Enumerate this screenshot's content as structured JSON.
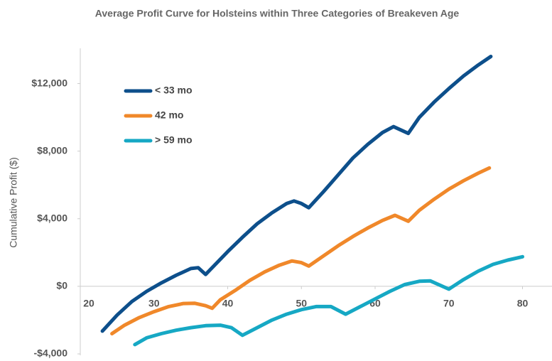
{
  "chart_data": {
    "type": "line",
    "title": "Average Profit Curve for Holsteins within Three Categories of Breakeven Age",
    "y_label": "Cumulative Profit ($)",
    "xlim": [
      20,
      84
    ],
    "xticks": [
      20,
      30,
      40,
      50,
      60,
      70,
      80
    ],
    "ylim": [
      -4000,
      14000
    ],
    "yticks": [
      {
        "value": -4000,
        "label": "-$4,000"
      },
      {
        "value": 0,
        "label": "$0"
      },
      {
        "value": 4000,
        "label": "$4,000"
      },
      {
        "value": 8000,
        "label": "$8,000"
      },
      {
        "value": 12000,
        "label": "$12,000"
      }
    ],
    "legend": "upper left",
    "series": [
      {
        "name": "< 33 mo",
        "color": "#0d4f8b",
        "x": [
          23,
          25,
          27,
          29,
          31,
          33,
          35,
          36,
          37,
          38,
          40,
          42,
          44,
          46,
          48,
          49,
          50,
          51,
          53,
          55,
          57,
          59,
          61,
          62.5,
          64.5,
          66,
          68,
          70,
          72,
          74,
          75.7
        ],
        "values": [
          -2650,
          -1700,
          -900,
          -300,
          200,
          650,
          1050,
          1100,
          700,
          1150,
          2050,
          2900,
          3700,
          4350,
          4900,
          5050,
          4900,
          4650,
          5600,
          6600,
          7600,
          8400,
          9100,
          9450,
          9050,
          10000,
          10900,
          11700,
          12450,
          13100,
          13600
        ]
      },
      {
        "name": "42 mo",
        "color": "#f0882a",
        "x": [
          24.3,
          26,
          28,
          30,
          32,
          34,
          35.5,
          37,
          37.9,
          39,
          41,
          43,
          45,
          47,
          48.7,
          50,
          51,
          53,
          55,
          57,
          59,
          61,
          62.7,
          64.5,
          66,
          68,
          70,
          72,
          74,
          75.5
        ],
        "values": [
          -2800,
          -2300,
          -1850,
          -1500,
          -1200,
          -1020,
          -1000,
          -1150,
          -1300,
          -800,
          -250,
          350,
          850,
          1250,
          1500,
          1400,
          1200,
          1800,
          2400,
          2950,
          3450,
          3900,
          4200,
          3850,
          4500,
          5150,
          5750,
          6250,
          6700,
          7000
        ]
      },
      {
        "name": "> 59 mo",
        "color": "#16a8c4",
        "x": [
          27.4,
          29,
          31,
          33,
          35,
          37,
          39,
          40.5,
          42,
          44,
          46,
          48,
          50,
          52,
          54,
          56,
          58,
          60,
          62,
          64,
          66,
          67.5,
          70,
          72,
          74,
          76,
          78,
          80
        ],
        "values": [
          -3450,
          -3050,
          -2800,
          -2600,
          -2450,
          -2330,
          -2300,
          -2450,
          -2900,
          -2450,
          -2000,
          -1650,
          -1380,
          -1200,
          -1200,
          -1650,
          -1200,
          -750,
          -300,
          100,
          300,
          320,
          -170,
          400,
          900,
          1300,
          1550,
          1750
        ]
      }
    ]
  }
}
